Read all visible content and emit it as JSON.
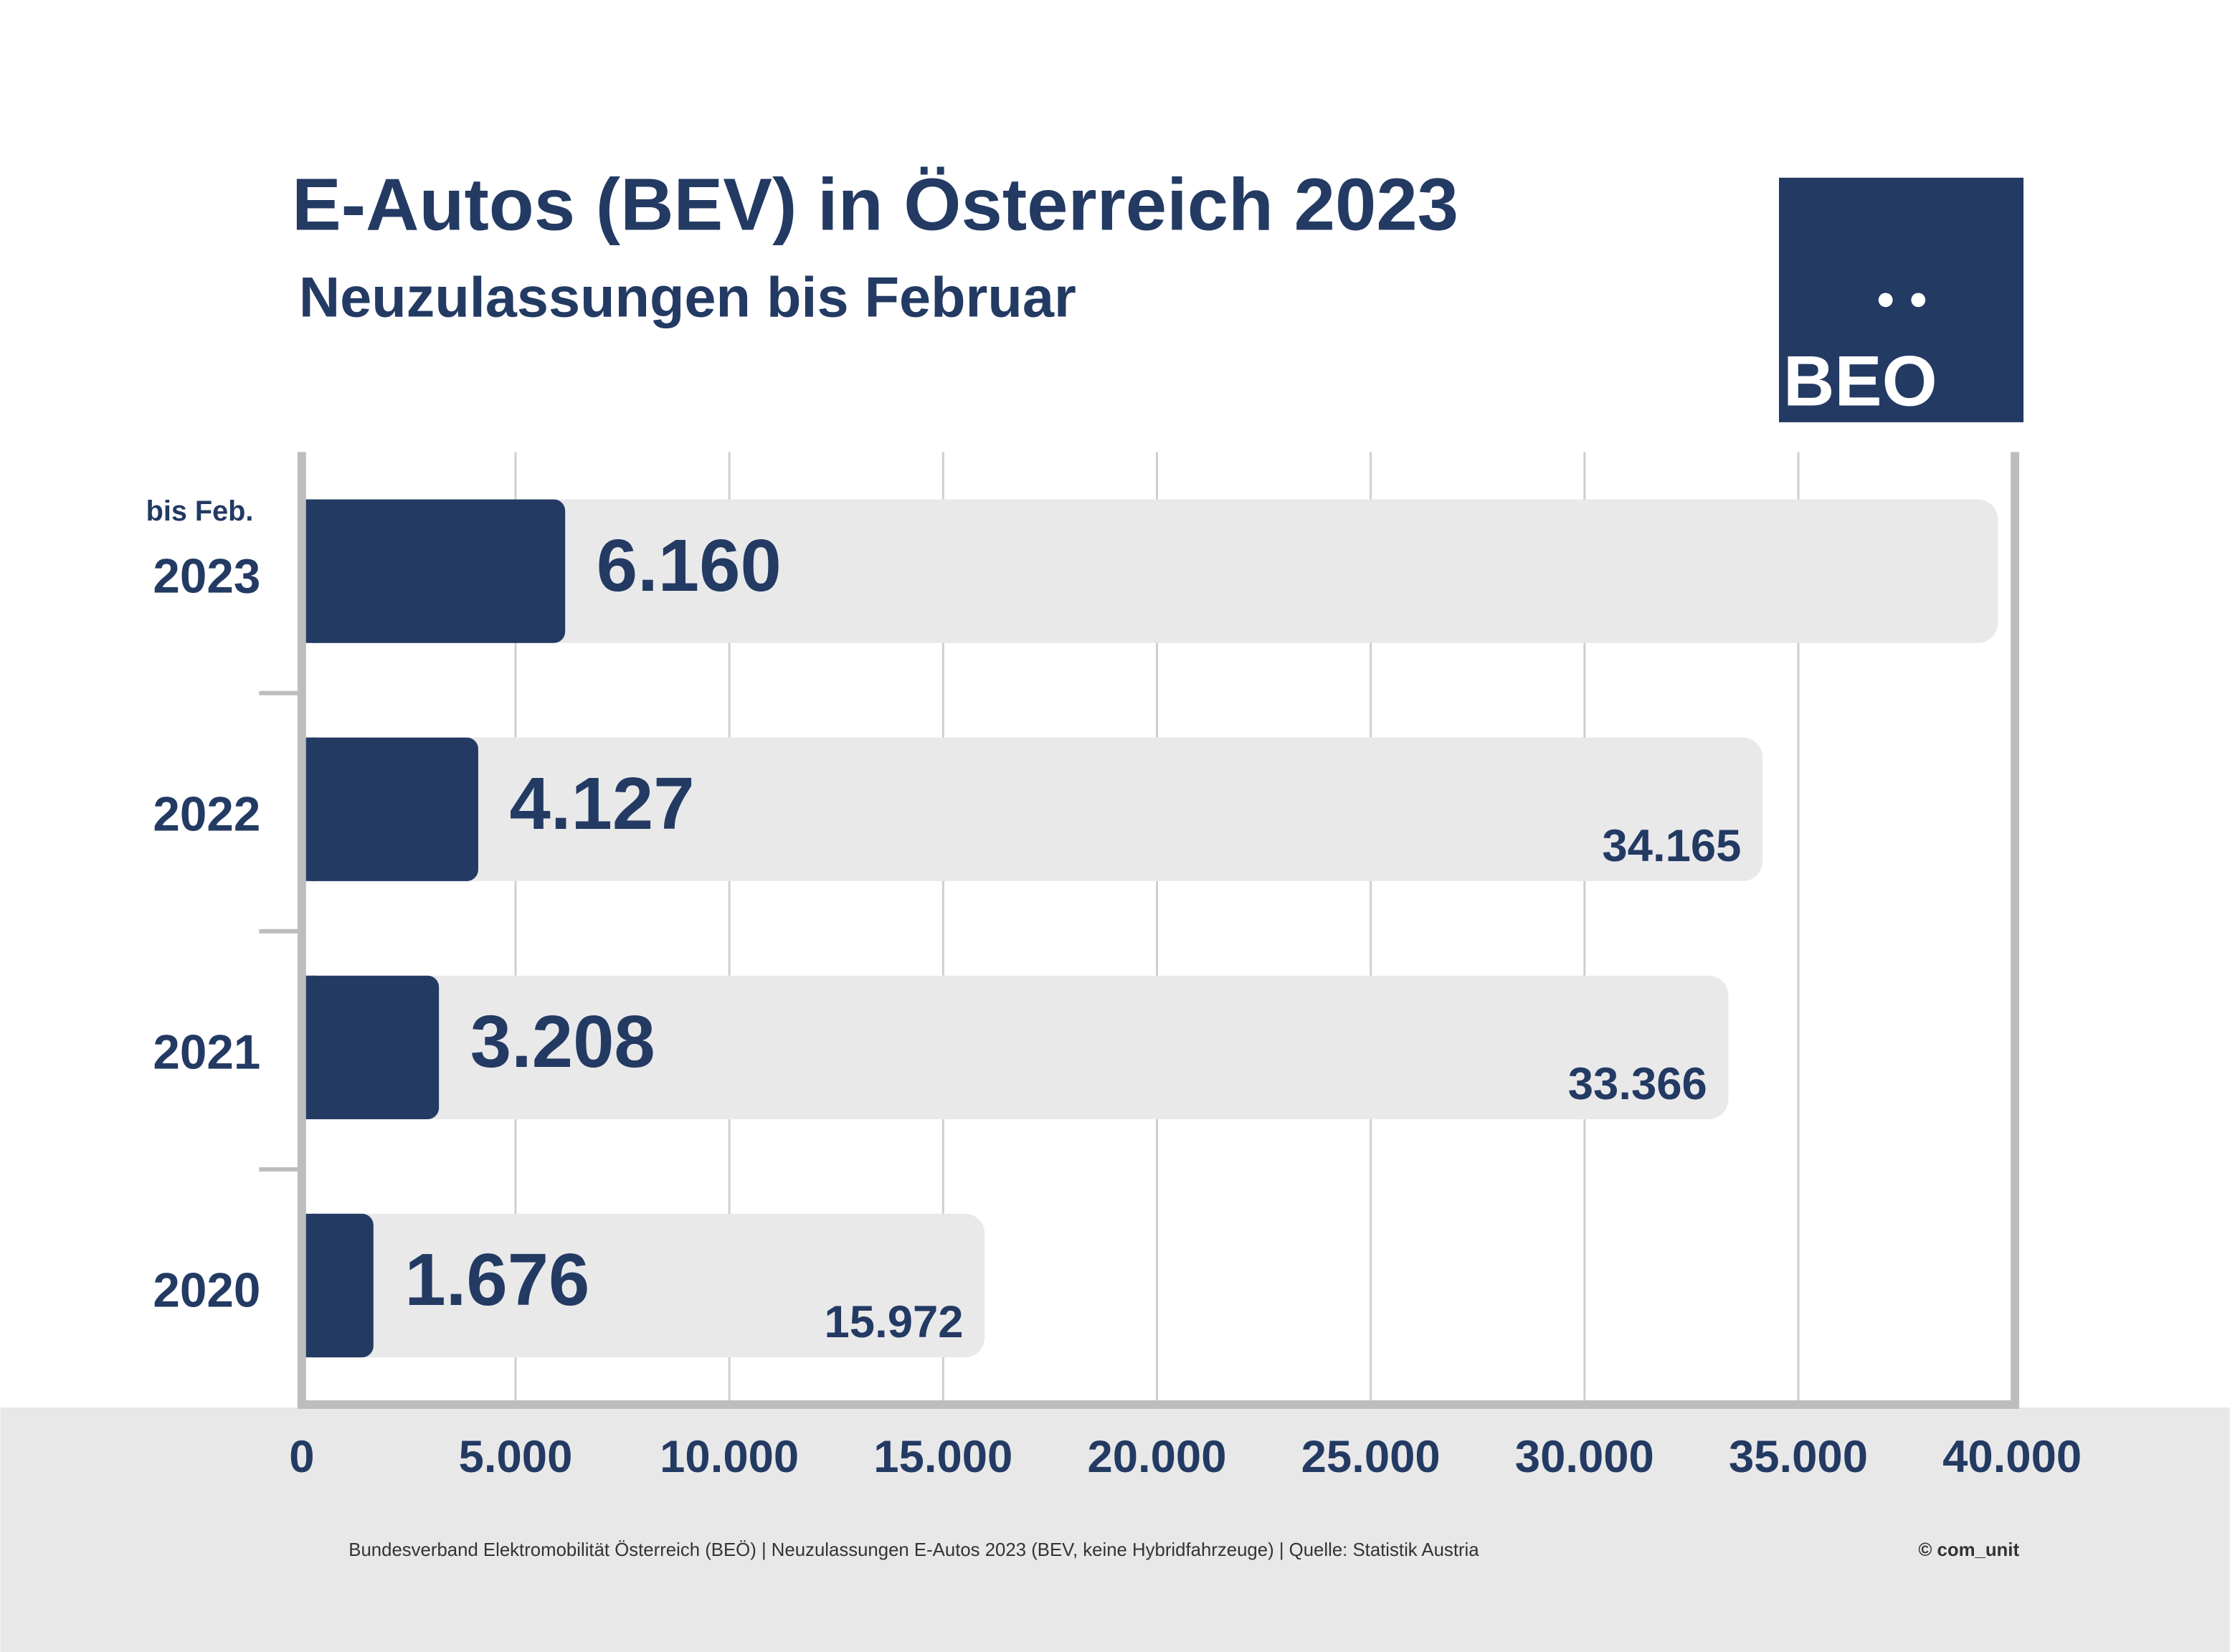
{
  "chart_data": {
    "type": "bar",
    "orientation": "horizontal",
    "title": "E-Autos (BEV) in Österreich 2023",
    "subtitle": "Neuzulassungen bis Februar",
    "categories": [
      "2023",
      "2022",
      "2021",
      "2020"
    ],
    "annotation": "bis Feb.",
    "series": [
      {
        "color": "#233a63",
        "values": [
          6160,
          4127,
          3208,
          1676
        ],
        "value_labels": [
          "6.160",
          "4.127",
          "3.208",
          "1.676"
        ]
      },
      {
        "color": "#e9e9ea",
        "values": [
          null,
          34165,
          33366,
          15972
        ],
        "value_labels": [
          null,
          "34.165",
          "33.366",
          "15.972"
        ]
      }
    ],
    "xlim": [
      0,
      40000
    ],
    "xticks": [
      0,
      {
        "value": 5000,
        "label": "5.000"
      },
      {
        "value": 10000,
        "label": "10.000"
      },
      {
        "value": 15000,
        "label": "15.000"
      },
      {
        "value": 20000,
        "label": "20.000"
      },
      {
        "value": 25000,
        "label": "25.000"
      },
      {
        "value": 30000,
        "label": "30.000"
      },
      {
        "value": 35000,
        "label": "35.000"
      },
      {
        "value": 40000,
        "label": "40.000"
      }
    ],
    "grid": true,
    "footer": "Bundesverband Elektromobilität Österreich (BEÖ) | Neuzulassungen E-Autos 2023 (BEV, keine Hybridfahrzeuge) | Quelle: Statistik Austria",
    "copyright": "© com_unit",
    "logo": "BEO"
  }
}
